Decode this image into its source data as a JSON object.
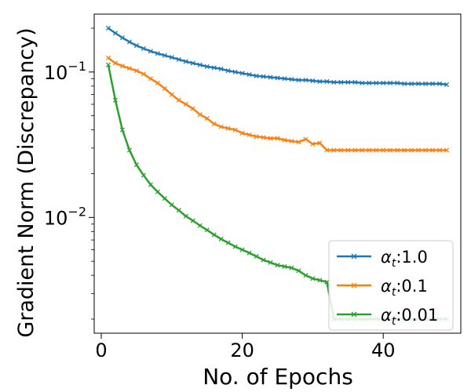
{
  "chart_data": {
    "type": "line",
    "title": "",
    "xlabel": "No. of Epochs",
    "ylabel": "Gradient Norm (Discrepancy)",
    "xlim": [
      -1,
      51
    ],
    "ylim": [
      0.0016,
      0.25
    ],
    "yscale": "log",
    "x_ticks": [
      0,
      20,
      40
    ],
    "y_ticks": [
      {
        "value": 0.01,
        "base": "10",
        "exp": "−2"
      },
      {
        "value": 0.1,
        "base": "10",
        "exp": "−1"
      }
    ],
    "grid": false,
    "legend_position": "lower-right",
    "x": [
      1,
      2,
      3,
      4,
      5,
      6,
      7,
      8,
      9,
      10,
      11,
      12,
      13,
      14,
      15,
      16,
      17,
      18,
      19,
      20,
      21,
      22,
      23,
      24,
      25,
      26,
      27,
      28,
      29,
      30,
      31,
      32,
      33,
      34,
      35,
      36,
      37,
      38,
      39,
      40,
      41,
      42,
      43,
      44,
      45,
      46,
      47,
      48,
      49
    ],
    "series": [
      {
        "name_symbol": "α",
        "name_sub": "t",
        "name_value": ":1.0",
        "color": "#1f77b4",
        "values": [
          0.2,
          0.185,
          0.172,
          0.161,
          0.152,
          0.145,
          0.139,
          0.134,
          0.13,
          0.126,
          0.122,
          0.118,
          0.115,
          0.112,
          0.109,
          0.107,
          0.105,
          0.102,
          0.1,
          0.098,
          0.096,
          0.094,
          0.093,
          0.092,
          0.091,
          0.09,
          0.089,
          0.088,
          0.088,
          0.087,
          0.086,
          0.086,
          0.085,
          0.085,
          0.085,
          0.085,
          0.084,
          0.084,
          0.084,
          0.084,
          0.084,
          0.084,
          0.083,
          0.083,
          0.083,
          0.083,
          0.083,
          0.083,
          0.082
        ]
      },
      {
        "name_symbol": "α",
        "name_sub": "t",
        "name_value": ":0.1",
        "color": "#ff7f0e",
        "values": [
          0.125,
          0.115,
          0.11,
          0.106,
          0.102,
          0.097,
          0.09,
          0.084,
          0.077,
          0.07,
          0.064,
          0.06,
          0.056,
          0.051,
          0.048,
          0.044,
          0.042,
          0.041,
          0.04,
          0.038,
          0.037,
          0.036,
          0.0355,
          0.035,
          0.035,
          0.034,
          0.0335,
          0.033,
          0.0345,
          0.032,
          0.0325,
          0.029,
          0.029,
          0.029,
          0.029,
          0.029,
          0.029,
          0.029,
          0.029,
          0.029,
          0.029,
          0.029,
          0.029,
          0.029,
          0.029,
          0.029,
          0.029,
          0.029,
          0.029
        ]
      },
      {
        "name_symbol": "α",
        "name_sub": "t",
        "name_value": ":0.01",
        "color": "#2ca02c",
        "values": [
          0.112,
          0.064,
          0.04,
          0.029,
          0.023,
          0.0195,
          0.0168,
          0.015,
          0.0135,
          0.0122,
          0.0112,
          0.0102,
          0.0095,
          0.0088,
          0.0082,
          0.0076,
          0.0071,
          0.0067,
          0.0063,
          0.006,
          0.0057,
          0.0054,
          0.0051,
          0.0049,
          0.0047,
          0.0046,
          0.0045,
          0.0043,
          0.004,
          0.0038,
          0.0037,
          0.0036,
          0.002,
          0.002,
          0.002,
          0.002,
          0.002,
          0.002,
          0.002,
          0.002,
          0.002,
          0.002,
          0.002,
          0.002,
          0.002,
          0.002,
          0.002,
          0.002,
          0.002
        ]
      }
    ]
  }
}
